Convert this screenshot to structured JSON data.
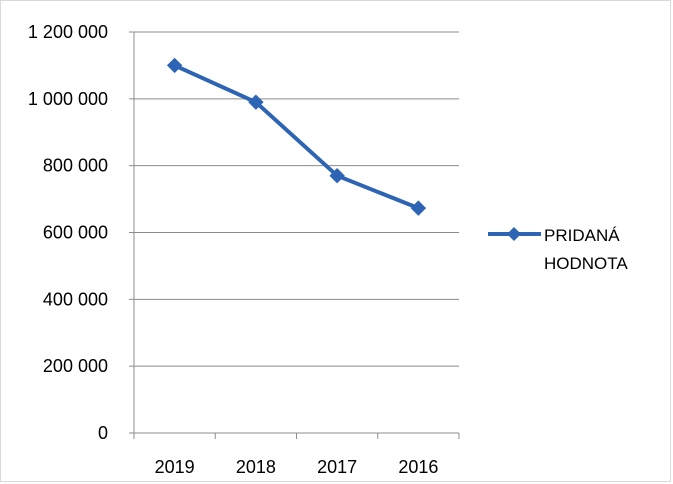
{
  "chart_data": {
    "type": "line",
    "categories": [
      "2019",
      "2018",
      "2017",
      "2016"
    ],
    "series": [
      {
        "name": "PRIDANÁ HODNOTA",
        "values": [
          1100000,
          990000,
          770000,
          673000
        ],
        "color": "#2e64b4",
        "marker": "diamond"
      }
    ],
    "y_ticks": [
      "0",
      "200 000",
      "400 000",
      "600 000",
      "800 000",
      "1 000 000",
      "1 200 000"
    ],
    "ylim": [
      0,
      1200000
    ],
    "grid": true,
    "legend_position": "right",
    "legend_lines": [
      "PRIDANÁ",
      "HODNOTA"
    ]
  }
}
